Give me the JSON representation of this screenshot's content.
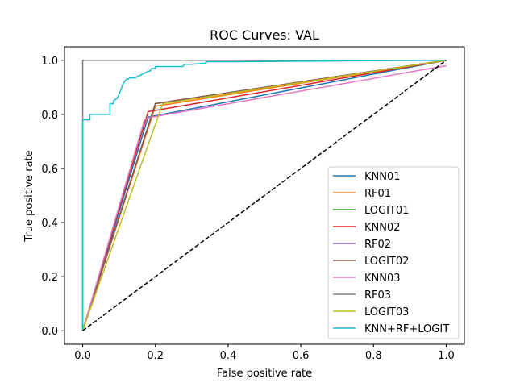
{
  "chart_data": {
    "type": "line",
    "title": "ROC Curves: VAL",
    "xlabel": "False positive rate",
    "ylabel": "True positive rate",
    "xlim": [
      -0.05,
      1.05
    ],
    "ylim": [
      -0.05,
      1.05
    ],
    "xticks": [
      "0.0",
      "0.2",
      "0.4",
      "0.6",
      "0.8",
      "1.0"
    ],
    "yticks": [
      "0.0",
      "0.2",
      "0.4",
      "0.6",
      "0.8",
      "1.0"
    ],
    "grid": false,
    "legend_position": "lower-right",
    "reference_line": {
      "x": [
        0,
        1
      ],
      "y": [
        0,
        1
      ],
      "style": "dashed",
      "color": "#000000"
    },
    "series": [
      {
        "name": "KNN01",
        "color": "#1f77b4",
        "x": [
          0,
          0.18,
          1.0
        ],
        "y": [
          0,
          0.79,
          1.0
        ]
      },
      {
        "name": "RF01",
        "color": "#ff7f0e",
        "x": [
          0,
          0.2,
          1.0
        ],
        "y": [
          0,
          0.83,
          1.0
        ]
      },
      {
        "name": "LOGIT01",
        "color": "#2ca02c",
        "x": [
          0,
          0.2,
          1.0
        ],
        "y": [
          0,
          0.84,
          1.0
        ]
      },
      {
        "name": "KNN02",
        "color": "#d62728",
        "x": [
          0,
          0.18,
          1.0
        ],
        "y": [
          0,
          0.81,
          1.0
        ]
      },
      {
        "name": "RF02",
        "color": "#9467bd",
        "x": [
          0,
          0.2,
          1.0
        ],
        "y": [
          0,
          0.84,
          1.0
        ]
      },
      {
        "name": "LOGIT02",
        "color": "#8c564b",
        "x": [
          0,
          0.2,
          1.0
        ],
        "y": [
          0,
          0.84,
          1.0
        ]
      },
      {
        "name": "KNN03",
        "color": "#e377c2",
        "x": [
          0,
          0.17,
          0.19,
          1.0
        ],
        "y": [
          0,
          0.78,
          0.79,
          0.98
        ]
      },
      {
        "name": "RF03",
        "color": "#7f7f7f",
        "x": [
          0,
          0,
          1.0
        ],
        "y": [
          0,
          1.0,
          1.0
        ]
      },
      {
        "name": "LOGIT03",
        "color": "#bcbd22",
        "x": [
          0,
          0.22,
          1.0
        ],
        "y": [
          0,
          0.84,
          1.0
        ]
      },
      {
        "name": "KNN+RF+LOGIT",
        "color": "#17becf",
        "x": [
          0,
          0,
          0.02,
          0.02,
          0.075,
          0.075,
          0.085,
          0.085,
          0.095,
          0.1,
          0.105,
          0.11,
          0.115,
          0.12,
          0.125,
          0.13,
          0.145,
          0.15,
          0.16,
          0.165,
          0.175,
          0.18,
          0.185,
          0.19,
          0.2,
          0.2,
          0.275,
          0.28,
          0.3,
          0.34,
          0.34,
          0.42,
          1.0
        ],
        "y": [
          0,
          0.78,
          0.78,
          0.8,
          0.8,
          0.84,
          0.84,
          0.85,
          0.86,
          0.875,
          0.89,
          0.91,
          0.92,
          0.93,
          0.93,
          0.935,
          0.935,
          0.94,
          0.945,
          0.95,
          0.955,
          0.96,
          0.96,
          0.97,
          0.97,
          0.977,
          0.977,
          0.985,
          0.985,
          0.99,
          0.995,
          0.995,
          1.0
        ]
      }
    ]
  }
}
